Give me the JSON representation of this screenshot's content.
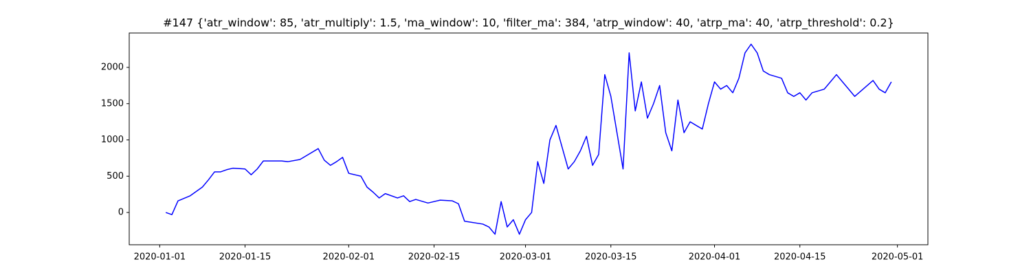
{
  "chart_data": {
    "type": "line",
    "title": "#147 {'atr_window': 85, 'atr_multiply': 1.5, 'ma_window': 10, 'filter_ma': 384, 'atrp_window': 40, 'atrp_ma': 40, 'atrp_threshold': 0.2}",
    "x": [
      "2020-01-02",
      "2020-01-03",
      "2020-01-04",
      "2020-01-06",
      "2020-01-08",
      "2020-01-09",
      "2020-01-10",
      "2020-01-11",
      "2020-01-12",
      "2020-01-13",
      "2020-01-15",
      "2020-01-16",
      "2020-01-17",
      "2020-01-18",
      "2020-01-21",
      "2020-01-22",
      "2020-01-24",
      "2020-01-25",
      "2020-01-27",
      "2020-01-28",
      "2020-01-29",
      "2020-01-30",
      "2020-01-31",
      "2020-02-01",
      "2020-02-03",
      "2020-02-04",
      "2020-02-05",
      "2020-02-06",
      "2020-02-07",
      "2020-02-09",
      "2020-02-10",
      "2020-02-11",
      "2020-02-12",
      "2020-02-14",
      "2020-02-16",
      "2020-02-18",
      "2020-02-19",
      "2020-02-20",
      "2020-02-23",
      "2020-02-24",
      "2020-02-25",
      "2020-02-26",
      "2020-02-27",
      "2020-02-28",
      "2020-02-29",
      "2020-03-01",
      "2020-03-02",
      "2020-03-03",
      "2020-03-04",
      "2020-03-05",
      "2020-03-06",
      "2020-03-07",
      "2020-03-08",
      "2020-03-09",
      "2020-03-10",
      "2020-03-11",
      "2020-03-12",
      "2020-03-13",
      "2020-03-14",
      "2020-03-15",
      "2020-03-16",
      "2020-03-17",
      "2020-03-18",
      "2020-03-19",
      "2020-03-20",
      "2020-03-21",
      "2020-03-22",
      "2020-03-23",
      "2020-03-24",
      "2020-03-25",
      "2020-03-26",
      "2020-03-27",
      "2020-03-28",
      "2020-03-29",
      "2020-03-30",
      "2020-03-31",
      "2020-04-01",
      "2020-04-02",
      "2020-04-03",
      "2020-04-04",
      "2020-04-05",
      "2020-04-06",
      "2020-04-07",
      "2020-04-08",
      "2020-04-09",
      "2020-04-10",
      "2020-04-12",
      "2020-04-13",
      "2020-04-14",
      "2020-04-15",
      "2020-04-16",
      "2020-04-17",
      "2020-04-19",
      "2020-04-20",
      "2020-04-21",
      "2020-04-22",
      "2020-04-23",
      "2020-04-24",
      "2020-04-27",
      "2020-04-28",
      "2020-04-29",
      "2020-04-30"
    ],
    "values": [
      0,
      -30,
      160,
      230,
      350,
      450,
      560,
      560,
      590,
      610,
      600,
      520,
      600,
      710,
      710,
      700,
      730,
      780,
      880,
      720,
      650,
      700,
      760,
      540,
      500,
      350,
      280,
      200,
      260,
      200,
      230,
      150,
      180,
      130,
      170,
      160,
      120,
      -120,
      -160,
      -200,
      -300,
      150,
      -200,
      -100,
      -300,
      -100,
      0,
      700,
      400,
      1000,
      1200,
      900,
      600,
      700,
      850,
      1050,
      650,
      800,
      1900,
      1600,
      1100,
      600,
      2200,
      1400,
      1800,
      1300,
      1500,
      1750,
      1100,
      850,
      1550,
      1100,
      1250,
      1200,
      1150,
      1500,
      1800,
      1700,
      1750,
      1650,
      1850,
      2200,
      2320,
      2200,
      1950,
      1900,
      1850,
      1650,
      1600,
      1650,
      1550,
      1650,
      1700,
      1800,
      1900,
      1800,
      1700,
      1600,
      1820,
      1700,
      1650,
      1800
    ],
    "color": "blue",
    "xlim": [
      "2019-12-27",
      "2020-05-06"
    ],
    "xticks": [
      "2020-01-01",
      "2020-01-15",
      "2020-02-01",
      "2020-02-15",
      "2020-03-01",
      "2020-03-15",
      "2020-04-01",
      "2020-04-15",
      "2020-05-01"
    ],
    "ylim": [
      -445,
      2474
    ],
    "yticks": [
      0,
      500,
      1000,
      1500,
      2000
    ]
  }
}
